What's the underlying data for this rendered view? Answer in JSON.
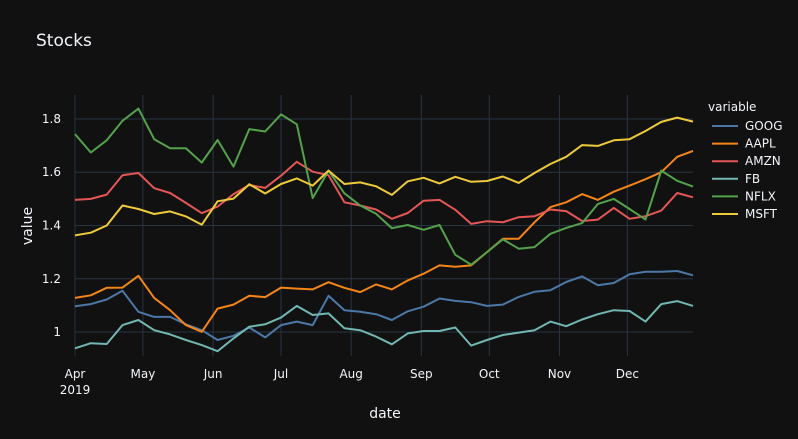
{
  "chart_data": {
    "type": "line",
    "title": "Stocks",
    "xlabel": "date",
    "ylabel": "value",
    "legend_title": "variable",
    "legend_placement": "right",
    "grid": true,
    "start_date": "2019-04-01",
    "interval_days": 7,
    "ylim": [
      0.91,
      1.89
    ],
    "y_ticks": [
      1,
      1.2,
      1.4,
      1.6,
      1.8
    ],
    "y_tick_labels": [
      "1",
      "1.2",
      "1.4",
      "1.6",
      "1.8"
    ],
    "x_ticks": [
      {
        "date": "2019-04-01",
        "label": "Apr",
        "sub": "2019"
      },
      {
        "date": "2019-05-01",
        "label": "May"
      },
      {
        "date": "2019-06-01",
        "label": "Jun"
      },
      {
        "date": "2019-07-01",
        "label": "Jul"
      },
      {
        "date": "2019-08-01",
        "label": "Aug"
      },
      {
        "date": "2019-09-01",
        "label": "Sep"
      },
      {
        "date": "2019-10-01",
        "label": "Oct"
      },
      {
        "date": "2019-11-01",
        "label": "Nov"
      },
      {
        "date": "2019-12-01",
        "label": "Dec"
      }
    ],
    "series": [
      {
        "name": "GOOG",
        "color": "#4c78a8",
        "values": [
          1.097,
          1.105,
          1.122,
          1.155,
          1.076,
          1.057,
          1.057,
          1.029,
          1.007,
          0.97,
          0.986,
          1.017,
          0.98,
          1.026,
          1.039,
          1.026,
          1.136,
          1.082,
          1.076,
          1.067,
          1.045,
          1.078,
          1.095,
          1.126,
          1.117,
          1.112,
          1.098,
          1.103,
          1.132,
          1.151,
          1.157,
          1.188,
          1.209,
          1.176,
          1.184,
          1.217,
          1.226,
          1.226,
          1.229,
          1.213
        ]
      },
      {
        "name": "AAPL",
        "color": "#f58518",
        "values": [
          1.128,
          1.138,
          1.166,
          1.167,
          1.211,
          1.128,
          1.082,
          1.026,
          1.001,
          1.088,
          1.103,
          1.136,
          1.131,
          1.167,
          1.163,
          1.16,
          1.187,
          1.166,
          1.15,
          1.179,
          1.16,
          1.194,
          1.219,
          1.25,
          1.245,
          1.25,
          1.3,
          1.35,
          1.35,
          1.412,
          1.469,
          1.487,
          1.518,
          1.496,
          1.527,
          1.55,
          1.574,
          1.6,
          1.658,
          1.68
        ]
      },
      {
        "name": "AMZN",
        "color": "#e45756",
        "values": [
          1.496,
          1.5,
          1.516,
          1.589,
          1.597,
          1.54,
          1.522,
          1.485,
          1.446,
          1.471,
          1.518,
          1.552,
          1.541,
          1.587,
          1.639,
          1.602,
          1.589,
          1.487,
          1.475,
          1.46,
          1.425,
          1.447,
          1.493,
          1.496,
          1.459,
          1.406,
          1.416,
          1.412,
          1.431,
          1.435,
          1.46,
          1.454,
          1.417,
          1.422,
          1.466,
          1.425,
          1.435,
          1.456,
          1.522,
          1.506
        ]
      },
      {
        "name": "FB",
        "color": "#72b7b2",
        "values": [
          0.939,
          0.958,
          0.955,
          1.026,
          1.045,
          1.007,
          0.991,
          0.97,
          0.951,
          0.928,
          0.976,
          1.02,
          1.029,
          1.054,
          1.098,
          1.064,
          1.07,
          1.014,
          1.007,
          0.983,
          0.954,
          0.995,
          1.004,
          1.004,
          1.017,
          0.949,
          0.97,
          0.989,
          0.998,
          1.007,
          1.039,
          1.022,
          1.047,
          1.067,
          1.082,
          1.079,
          1.039,
          1.105,
          1.116,
          1.098
        ]
      },
      {
        "name": "NFLX",
        "color": "#54a24b",
        "values": [
          1.743,
          1.674,
          1.72,
          1.793,
          1.839,
          1.724,
          1.69,
          1.69,
          1.636,
          1.721,
          1.621,
          1.762,
          1.753,
          1.817,
          1.78,
          1.503,
          1.606,
          1.521,
          1.475,
          1.444,
          1.39,
          1.402,
          1.384,
          1.402,
          1.29,
          1.253,
          1.3,
          1.348,
          1.313,
          1.319,
          1.369,
          1.391,
          1.409,
          1.481,
          1.5,
          1.462,
          1.422,
          1.606,
          1.568,
          1.546
        ]
      },
      {
        "name": "MSFT",
        "color": "#eeca3b",
        "values": [
          1.363,
          1.373,
          1.4,
          1.475,
          1.462,
          1.443,
          1.453,
          1.434,
          1.403,
          1.491,
          1.501,
          1.555,
          1.52,
          1.556,
          1.577,
          1.55,
          1.606,
          1.556,
          1.562,
          1.547,
          1.515,
          1.566,
          1.579,
          1.558,
          1.583,
          1.564,
          1.567,
          1.584,
          1.56,
          1.597,
          1.631,
          1.658,
          1.702,
          1.699,
          1.72,
          1.724,
          1.755,
          1.789,
          1.805,
          1.79
        ]
      }
    ]
  }
}
